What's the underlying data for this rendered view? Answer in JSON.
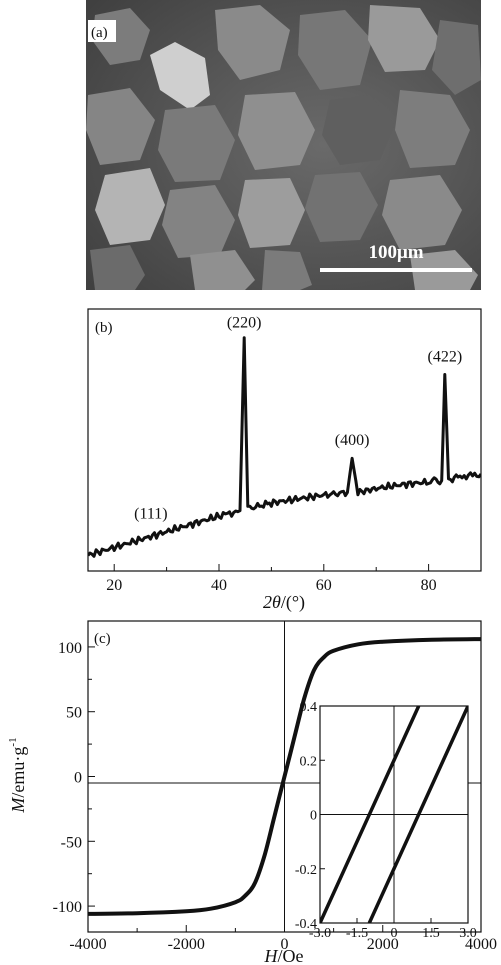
{
  "panel_a": {
    "label": "(a)",
    "scale_bar_text": "100μm"
  },
  "chart_data": [
    {
      "type": "line",
      "panel_label": "(b)",
      "xlabel_italic": "2θ",
      "xlabel_rest": "/(°)",
      "ylabel": "",
      "xlim": [
        15,
        90
      ],
      "ylim": [
        0,
        1
      ],
      "y_ticks_shown": false,
      "x_ticks": [
        20,
        40,
        60,
        80
      ],
      "grid": false,
      "series": [
        {
          "x": [
            15,
            20,
            25,
            30,
            35,
            40,
            44,
            44.8,
            45.5,
            47,
            50,
            55,
            60,
            64.5,
            65.4,
            66.5,
            70,
            75,
            80,
            82.5,
            83.1,
            83.8,
            86,
            90
          ],
          "values": [
            0.06,
            0.09,
            0.12,
            0.15,
            0.18,
            0.21,
            0.23,
            0.89,
            0.24,
            0.245,
            0.26,
            0.275,
            0.29,
            0.3,
            0.43,
            0.3,
            0.315,
            0.33,
            0.34,
            0.345,
            0.75,
            0.35,
            0.36,
            0.37
          ]
        }
      ],
      "annotations": [
        {
          "text": "(111)",
          "x": 27,
          "y": 0.2
        },
        {
          "text": "(220)",
          "x": 44.8,
          "y": 0.93
        },
        {
          "text": "(400)",
          "x": 65.4,
          "y": 0.48
        },
        {
          "text": "(422)",
          "x": 83.1,
          "y": 0.8
        }
      ]
    },
    {
      "type": "line",
      "panel_label": "(c)",
      "xlabel_italic": "H",
      "xlabel_rest": "/Oe",
      "ylabel_italic": "M",
      "ylabel_rest": "/emu·g",
      "ylabel_superscript": "-1",
      "xlim": [
        -4000,
        4000
      ],
      "ylim": [
        -120,
        120
      ],
      "x_ticks": [
        -4000,
        -2000,
        0,
        2000,
        4000
      ],
      "y_ticks": [
        -100,
        -50,
        0,
        50,
        100
      ],
      "grid": false,
      "series": [
        {
          "x": [
            -4000,
            -3000,
            -2000,
            -1500,
            -1000,
            -800,
            -600,
            -400,
            -200,
            0,
            200,
            400,
            600,
            800,
            1000,
            1500,
            2000,
            3000,
            4000
          ],
          "values": [
            -106,
            -105.5,
            -104,
            -102,
            -97,
            -92,
            -82,
            -60,
            -30,
            0,
            30,
            60,
            82,
            92,
            97,
            102,
            104,
            105.5,
            106
          ]
        }
      ],
      "inset": {
        "xlim": [
          -3.0,
          3.0
        ],
        "ylim": [
          -0.4,
          0.4
        ],
        "x_ticks": [
          "-3.0",
          "-1.5",
          "0",
          "1.5",
          "3.0"
        ],
        "y_ticks": [
          "0.4",
          "0.2",
          "0",
          "-0.2",
          "-0.4"
        ],
        "series": [
          {
            "name": "",
            "x": [
              -3.0,
              1.0
            ],
            "values": [
              -0.4,
              0.4
            ]
          },
          {
            "name": "",
            "x": [
              -1.0,
              3.0
            ],
            "values": [
              -0.4,
              0.4
            ]
          }
        ]
      }
    }
  ]
}
